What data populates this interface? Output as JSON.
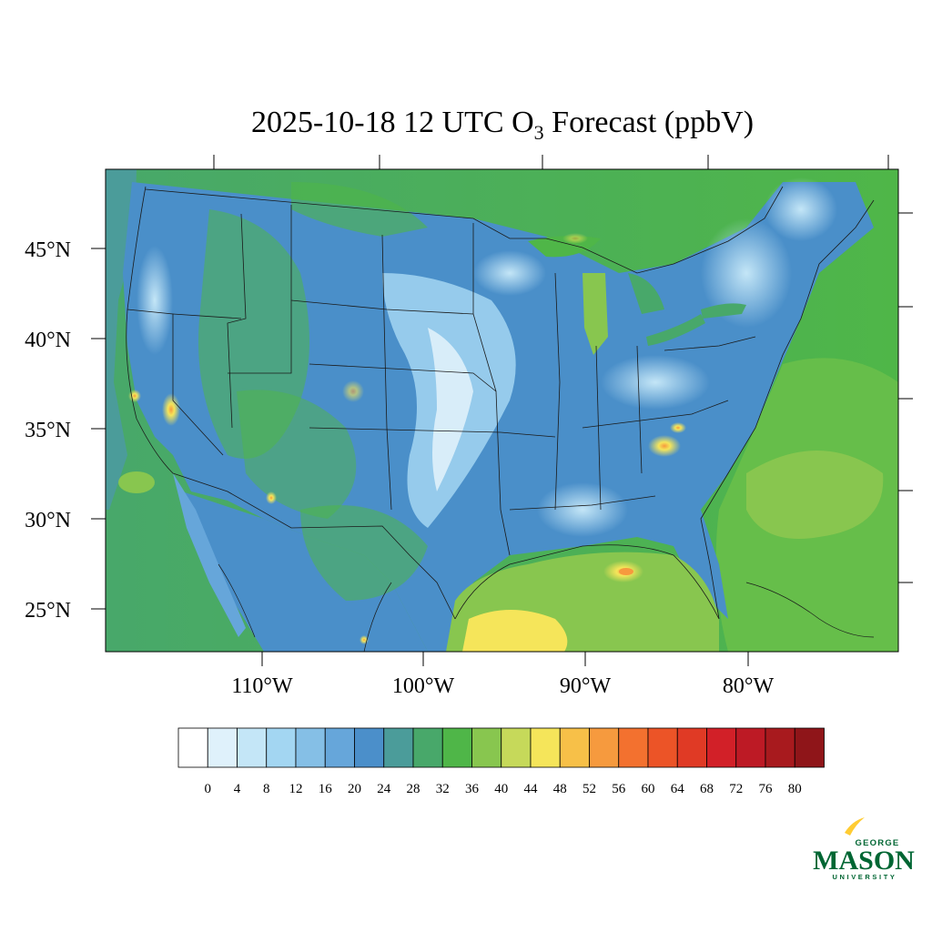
{
  "title": {
    "prefix": "2025-10-18 12 UTC O",
    "subscript": "3",
    "suffix": " Forecast (ppbV)"
  },
  "map": {
    "lat_labels": [
      "45°N",
      "40°N",
      "35°N",
      "30°N",
      "25°N"
    ],
    "lat_values": [
      45,
      40,
      35,
      30,
      25
    ],
    "lon_labels": [
      "110°W",
      "100°W",
      "90°W",
      "80°W"
    ],
    "lon_values": [
      -110,
      -100,
      -90,
      -80
    ],
    "field_palette": {
      "ocean_west": "#3f9e6c",
      "ocean_east": "#4dae4a",
      "land_low": "#4a8fc9",
      "land_mid": "#7eb9e4",
      "land_high": "#c6e4f6",
      "gulf": "#8cc54e",
      "hot_spot": "#f4e65a",
      "peak": "#f6a640"
    }
  },
  "colorbar": {
    "colors": [
      "#ffffff",
      "#dff1fb",
      "#c4e6f7",
      "#a3d6f2",
      "#85bfe6",
      "#66a6da",
      "#4b8fca",
      "#4b9c9a",
      "#48a86a",
      "#4fb648",
      "#88c64f",
      "#c6d95a",
      "#f5e55a",
      "#f7c048",
      "#f69a3e",
      "#f3712f",
      "#ec5427",
      "#e03a25",
      "#d22028",
      "#bd1a25",
      "#a81a1e",
      "#8f1519"
    ],
    "tick_labels": [
      "0",
      "4",
      "8",
      "12",
      "16",
      "20",
      "24",
      "28",
      "32",
      "36",
      "40",
      "44",
      "48",
      "52",
      "56",
      "60",
      "64",
      "68",
      "72",
      "76",
      "80"
    ]
  },
  "logo": {
    "top": "GEORGE",
    "mid": "MASON",
    "bottom": "UNIVERSITY",
    "green": "#006633",
    "gold": "#ffcc33"
  }
}
